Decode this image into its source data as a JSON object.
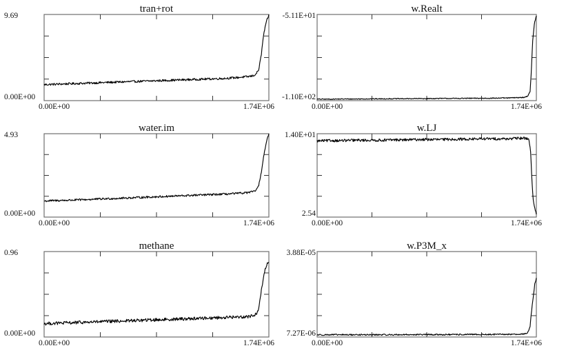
{
  "chart_data": [
    {
      "type": "line",
      "title": "tran+rot",
      "x_min_label": "0.00E+00",
      "x_max_label": "1.74E+06",
      "y_max_label": "9.69",
      "y_min_label": "0.00E+00",
      "xlim": [
        0,
        1740000
      ],
      "ylim": [
        0,
        9.69
      ],
      "series": [
        {
          "x": [
            0,
            100000,
            200000,
            300000,
            400000,
            500000,
            600000,
            700000,
            800000,
            900000,
            1000000,
            1100000,
            1200000,
            1300000,
            1400000,
            1500000,
            1580000,
            1620000,
            1640000,
            1660000,
            1680000,
            1700000,
            1720000,
            1740000
          ],
          "y": [
            1.8,
            1.85,
            1.9,
            1.95,
            2.0,
            2.05,
            2.1,
            2.15,
            2.2,
            2.25,
            2.3,
            2.35,
            2.4,
            2.45,
            2.5,
            2.6,
            2.7,
            2.8,
            3.0,
            3.4,
            5.0,
            7.5,
            8.8,
            9.69
          ],
          "noise": 0.12
        }
      ]
    },
    {
      "type": "line",
      "title": "w.Realt",
      "x_min_label": "0.00E+00",
      "x_max_label": "1.74E+06",
      "y_max_label": "-5.11E+01",
      "y_min_label": "-1.10E+02",
      "xlim": [
        0,
        1740000
      ],
      "ylim": [
        -110,
        -51.1
      ],
      "series": [
        {
          "x": [
            0,
            100000,
            200000,
            300000,
            400000,
            500000,
            600000,
            700000,
            800000,
            900000,
            1000000,
            1100000,
            1200000,
            1300000,
            1400000,
            1500000,
            1580000,
            1640000,
            1670000,
            1690000,
            1700000,
            1710000,
            1725000,
            1740000
          ],
          "y": [
            -109.0,
            -109.0,
            -108.9,
            -108.9,
            -108.8,
            -108.8,
            -108.7,
            -108.7,
            -108.6,
            -108.6,
            -108.5,
            -108.5,
            -108.4,
            -108.4,
            -108.3,
            -108.2,
            -108.0,
            -107.8,
            -107.0,
            -104.0,
            -90.0,
            -70.0,
            -57.0,
            -52.0
          ],
          "noise": 0.3
        }
      ]
    },
    {
      "type": "line",
      "title": "water.im",
      "x_min_label": "0.00E+00",
      "x_max_label": "1.74E+06",
      "y_max_label": "4.93",
      "y_min_label": "0.00E+00",
      "xlim": [
        0,
        1740000
      ],
      "ylim": [
        0,
        4.93
      ],
      "series": [
        {
          "x": [
            0,
            100000,
            200000,
            300000,
            400000,
            500000,
            600000,
            700000,
            800000,
            900000,
            1000000,
            1100000,
            1200000,
            1300000,
            1400000,
            1500000,
            1580000,
            1620000,
            1640000,
            1660000,
            1680000,
            1700000,
            1720000,
            1740000
          ],
          "y": [
            0.95,
            0.98,
            1.0,
            1.03,
            1.06,
            1.09,
            1.12,
            1.15,
            1.18,
            1.21,
            1.24,
            1.27,
            1.3,
            1.33,
            1.36,
            1.4,
            1.45,
            1.5,
            1.6,
            1.8,
            2.6,
            3.6,
            4.4,
            4.93
          ],
          "noise": 0.06
        }
      ]
    },
    {
      "type": "line",
      "title": "w.LJ",
      "x_min_label": "0.00E+00",
      "x_max_label": "1.74E+06",
      "y_max_label": "1.40E+01",
      "y_min_label": "2.54",
      "xlim": [
        0,
        1740000
      ],
      "ylim": [
        2.54,
        14.0
      ],
      "series": [
        {
          "x": [
            0,
            100000,
            200000,
            300000,
            400000,
            500000,
            600000,
            700000,
            800000,
            900000,
            1000000,
            1100000,
            1200000,
            1300000,
            1400000,
            1500000,
            1580000,
            1640000,
            1680000,
            1695000,
            1705000,
            1715000,
            1728000,
            1740000
          ],
          "y": [
            13.0,
            13.05,
            13.05,
            13.1,
            13.1,
            13.1,
            13.15,
            13.15,
            13.2,
            13.2,
            13.2,
            13.25,
            13.25,
            13.3,
            13.3,
            13.3,
            13.35,
            13.4,
            13.3,
            11.5,
            7.5,
            5.0,
            3.6,
            2.9
          ],
          "noise": 0.18
        }
      ]
    },
    {
      "type": "line",
      "title": "methane",
      "x_min_label": "0.00E+00",
      "x_max_label": "1.74E+06",
      "y_max_label": "0.96",
      "y_min_label": "0.00E+00",
      "xlim": [
        0,
        1740000
      ],
      "ylim": [
        0,
        0.96
      ],
      "series": [
        {
          "x": [
            0,
            100000,
            200000,
            300000,
            400000,
            500000,
            600000,
            700000,
            800000,
            900000,
            1000000,
            1100000,
            1200000,
            1300000,
            1400000,
            1500000,
            1580000,
            1620000,
            1640000,
            1660000,
            1680000,
            1700000,
            1720000,
            1740000
          ],
          "y": [
            0.15,
            0.155,
            0.16,
            0.165,
            0.17,
            0.175,
            0.18,
            0.185,
            0.19,
            0.195,
            0.2,
            0.205,
            0.21,
            0.215,
            0.22,
            0.225,
            0.23,
            0.24,
            0.26,
            0.3,
            0.5,
            0.7,
            0.8,
            0.85
          ],
          "noise": 0.018
        }
      ]
    },
    {
      "type": "line",
      "title": "w.P3M_x",
      "x_min_label": "0.00E+00",
      "x_max_label": "1.74E+06",
      "y_max_label": "3.88E-05",
      "y_min_label": "7.27E-06",
      "xlim": [
        0,
        1740000
      ],
      "ylim": [
        7.27e-06,
        3.88e-05
      ],
      "series": [
        {
          "x": [
            0,
            100000,
            200000,
            300000,
            400000,
            500000,
            600000,
            700000,
            800000,
            900000,
            1000000,
            1100000,
            1200000,
            1300000,
            1400000,
            1500000,
            1580000,
            1640000,
            1670000,
            1690000,
            1700000,
            1715000,
            1728000,
            1740000
          ],
          "y": [
            8.1e-06,
            8.1e-06,
            8.1e-06,
            8.1e-06,
            8.1e-06,
            8.1e-06,
            8.1e-06,
            8.15e-06,
            8.15e-06,
            8.15e-06,
            8.15e-06,
            8.15e-06,
            8.2e-06,
            8.2e-06,
            8.2e-06,
            8.25e-06,
            8.3e-06,
            8.4e-06,
            8.7e-06,
            1.1e-05,
            1.6e-05,
            2.2e-05,
            2.7e-05,
            2.9e-05
          ],
          "noise": 2.5e-07
        }
      ]
    }
  ]
}
